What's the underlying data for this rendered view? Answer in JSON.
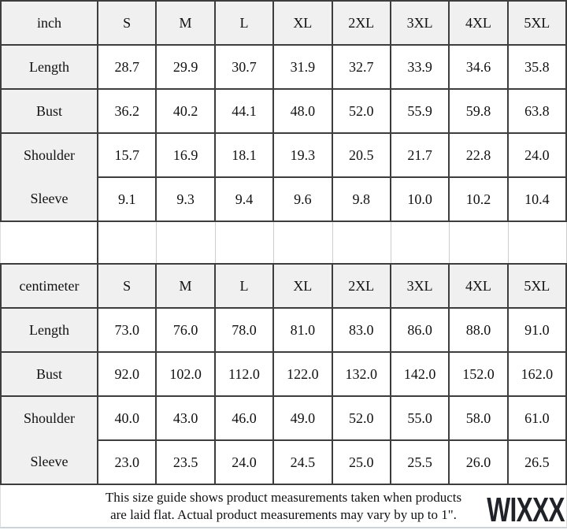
{
  "tables": [
    {
      "unit": "inch",
      "sizes": [
        "S",
        "M",
        "L",
        "XL",
        "2XL",
        "3XL",
        "4XL",
        "5XL"
      ],
      "rows": [
        {
          "label": "Length",
          "values": [
            "28.7",
            "29.9",
            "30.7",
            "31.9",
            "32.7",
            "33.9",
            "34.6",
            "35.8"
          ]
        },
        {
          "label": "Bust",
          "values": [
            "36.2",
            "40.2",
            "44.1",
            "48.0",
            "52.0",
            "55.9",
            "59.8",
            "63.8"
          ]
        },
        {
          "label": "Shoulder",
          "values": [
            "15.7",
            "16.9",
            "18.1",
            "19.3",
            "20.5",
            "21.7",
            "22.8",
            "24.0"
          ]
        },
        {
          "label": "Sleeve",
          "values": [
            "9.1",
            "9.3",
            "9.4",
            "9.6",
            "9.8",
            "10.0",
            "10.2",
            "10.4"
          ]
        }
      ]
    },
    {
      "unit": "centimeter",
      "sizes": [
        "S",
        "M",
        "L",
        "XL",
        "2XL",
        "3XL",
        "4XL",
        "5XL"
      ],
      "rows": [
        {
          "label": "Length",
          "values": [
            "73.0",
            "76.0",
            "78.0",
            "81.0",
            "83.0",
            "86.0",
            "88.0",
            "91.0"
          ]
        },
        {
          "label": "Bust",
          "values": [
            "92.0",
            "102.0",
            "112.0",
            "122.0",
            "132.0",
            "142.0",
            "152.0",
            "162.0"
          ]
        },
        {
          "label": "Shoulder",
          "values": [
            "40.0",
            "43.0",
            "46.0",
            "49.0",
            "52.0",
            "55.0",
            "58.0",
            "61.0"
          ]
        },
        {
          "label": "Sleeve",
          "values": [
            "23.0",
            "23.5",
            "24.0",
            "24.5",
            "25.0",
            "25.5",
            "26.0",
            "26.5"
          ]
        }
      ]
    }
  ],
  "footer": {
    "line1": "This size guide shows product measurements taken when products",
    "line2": "are laid flat. Actual product measurements may vary by up to 1\".",
    "watermark": "WIXXX"
  },
  "colors": {
    "header_bg": "#f0f0f0",
    "border_dark": "#3d3d3d",
    "border_light": "#cccccc",
    "watermark": "#20222a"
  }
}
